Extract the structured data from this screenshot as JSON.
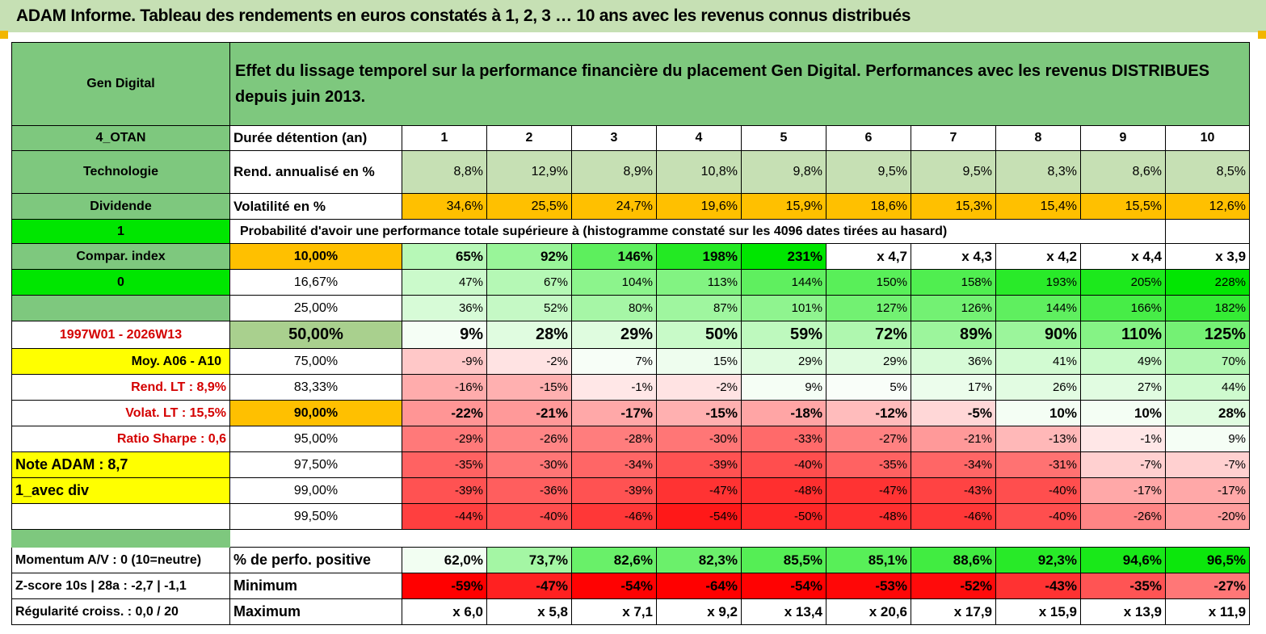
{
  "title": "ADAM Informe. Tableau des rendements en euros constatés à 1, 2, 3 … 10 ans avec les revenus connus distribués",
  "header": {
    "fund": "Gen Digital",
    "description": "Effet du lissage temporel sur la performance financière du placement Gen Digital. Performances avec les revenus DISTRIBUES depuis juin 2013."
  },
  "rows": {
    "duration": {
      "left": "4_OTAN",
      "label": "Durée détention (an)",
      "values": [
        "1",
        "2",
        "3",
        "4",
        "5",
        "6",
        "7",
        "8",
        "9",
        "10"
      ]
    },
    "return": {
      "left": "Technologie",
      "label": "Rend. annualisé en %",
      "values": [
        "8,8%",
        "12,9%",
        "8,9%",
        "10,8%",
        "9,8%",
        "9,5%",
        "9,5%",
        "8,3%",
        "8,6%",
        "8,5%"
      ]
    },
    "volatility": {
      "left": "Dividende",
      "label": "Volatilité en %",
      "values": [
        "34,6%",
        "25,5%",
        "24,7%",
        "19,6%",
        "15,9%",
        "18,6%",
        "15,3%",
        "15,4%",
        "15,5%",
        "12,6%"
      ]
    },
    "prob_header": {
      "left": "1",
      "text": "Probabilité d'avoir une performance totale supérieure à (histogramme constaté sur les 4096 dates tirées au hasard)"
    }
  },
  "quantiles": [
    {
      "left": "Compar. index",
      "label": "10,00%",
      "values": [
        "65%",
        "92%",
        "146%",
        "198%",
        "231%",
        "x 4,7",
        "x 4,3",
        "x 4,2",
        "x 4,4",
        "x 3,9"
      ]
    },
    {
      "left": "0",
      "label": "16,67%",
      "values": [
        "47%",
        "67%",
        "104%",
        "113%",
        "144%",
        "150%",
        "158%",
        "193%",
        "205%",
        "228%"
      ]
    },
    {
      "left": "",
      "label": "25,00%",
      "values": [
        "36%",
        "52%",
        "80%",
        "87%",
        "101%",
        "127%",
        "126%",
        "144%",
        "166%",
        "182%"
      ]
    },
    {
      "left": "1997W01 - 2026W13",
      "label": "50,00%",
      "values": [
        "9%",
        "28%",
        "29%",
        "50%",
        "59%",
        "72%",
        "89%",
        "90%",
        "110%",
        "125%"
      ]
    },
    {
      "left": "Moy. A06 - A10",
      "label": "75,00%",
      "values": [
        "-9%",
        "-2%",
        "7%",
        "15%",
        "29%",
        "29%",
        "36%",
        "41%",
        "49%",
        "70%"
      ]
    },
    {
      "left": "Rend. LT :   8,9%",
      "label": "83,33%",
      "values": [
        "-16%",
        "-15%",
        "-1%",
        "-2%",
        "9%",
        "5%",
        "17%",
        "26%",
        "27%",
        "44%"
      ]
    },
    {
      "left": "Volat. LT :   15,5%",
      "label": "90,00%",
      "values": [
        "-22%",
        "-21%",
        "-17%",
        "-15%",
        "-18%",
        "-12%",
        "-5%",
        "10%",
        "10%",
        "28%"
      ]
    },
    {
      "left": "Ratio Sharpe :    0,6",
      "label": "95,00%",
      "values": [
        "-29%",
        "-26%",
        "-28%",
        "-30%",
        "-33%",
        "-27%",
        "-21%",
        "-13%",
        "-1%",
        "9%"
      ]
    },
    {
      "left": "Note ADAM : 8,7",
      "label": "97,50%",
      "values": [
        "-35%",
        "-30%",
        "-34%",
        "-39%",
        "-40%",
        "-35%",
        "-34%",
        "-31%",
        "-7%",
        "-7%"
      ]
    },
    {
      "left": "1_avec div",
      "label": "99,00%",
      "values": [
        "-39%",
        "-36%",
        "-39%",
        "-47%",
        "-48%",
        "-47%",
        "-43%",
        "-40%",
        "-17%",
        "-17%"
      ]
    },
    {
      "left": "",
      "label": "99,50%",
      "values": [
        "-44%",
        "-40%",
        "-46%",
        "-54%",
        "-50%",
        "-48%",
        "-46%",
        "-40%",
        "-26%",
        "-20%"
      ]
    }
  ],
  "summary": [
    {
      "left": "Momentum A/V : 0 (10=neutre)",
      "label": "% de perfo. positive",
      "values": [
        "62,0%",
        "73,7%",
        "82,6%",
        "82,3%",
        "85,5%",
        "85,1%",
        "88,6%",
        "92,3%",
        "94,6%",
        "96,5%"
      ]
    },
    {
      "left": "Z-score 10s | 28a : -2,7 | -1,1",
      "label": "Minimum",
      "values": [
        "-59%",
        "-47%",
        "-54%",
        "-64%",
        "-54%",
        "-53%",
        "-52%",
        "-43%",
        "-35%",
        "-27%"
      ]
    },
    {
      "left": "Régularité croiss. : 0,0 / 20",
      "label": "Maximum",
      "values": [
        "x 6,0",
        "x 5,8",
        "x 7,1",
        "x 9,2",
        "x 13,4",
        "x 20,6",
        "x 17,9",
        "x 15,9",
        "x 13,9",
        "x 11,9"
      ]
    }
  ],
  "colors": {
    "header_green": "#7ec87e",
    "bright_green": "#00e600",
    "yellow": "#ffff00",
    "orange": "#ffc000",
    "pale_green": "#c6e0b4",
    "mid_green": "#a9d08e",
    "red_text": "#d40000"
  }
}
